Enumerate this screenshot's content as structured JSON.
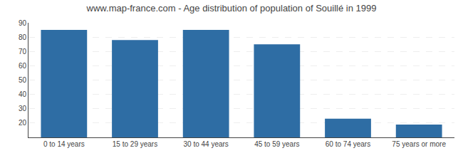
{
  "chart_data": {
    "type": "bar",
    "title": "www.map-france.com - Age distribution of population of Souillé in 1999",
    "categories": [
      "0 to 14 years",
      "15 to 29 years",
      "30 to 44 years",
      "45 to 59 years",
      "60 to 74 years",
      "75 years or more"
    ],
    "values": [
      85,
      78,
      85,
      75,
      23,
      19
    ],
    "color": "#2e6da4",
    "ylim": [
      10,
      90
    ],
    "yticks": [
      20,
      30,
      40,
      50,
      60,
      70,
      80,
      90
    ],
    "grid": true
  }
}
